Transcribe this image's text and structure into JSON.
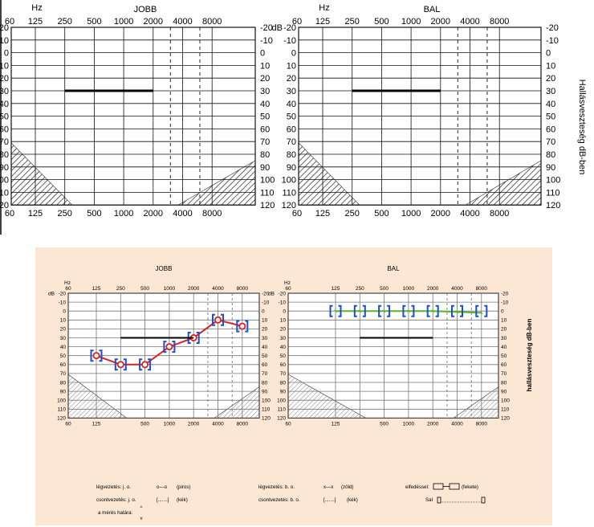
{
  "top": {
    "charts": [
      {
        "title": "JOBB"
      },
      {
        "title": "BAL"
      }
    ],
    "hz_label": "Hz",
    "db_label": "dB",
    "x_ticks": [
      "60",
      "125",
      "250",
      "500",
      "1000",
      "2000",
      "4000",
      "8000"
    ],
    "x_bottom_ticks": [
      "60",
      "125",
      "250",
      "500",
      "1000",
      "2000",
      "4000",
      "8000"
    ],
    "y_ticks": [
      "-20",
      "-10",
      "0",
      "10",
      "20",
      "30",
      "40",
      "50",
      "60",
      "70",
      "80",
      "90",
      "100",
      "110",
      "120"
    ],
    "side_label": "Hallásveszteség dB-ben"
  },
  "bottom": {
    "charts": [
      {
        "title": "JOBB"
      },
      {
        "title": "BAL"
      }
    ],
    "hz_label": "Hz",
    "db_label": "dB",
    "x_ticks": [
      "60",
      "125",
      "250",
      "500",
      "1000",
      "2000",
      "4000",
      "8000"
    ],
    "x_bottom_ticks": [
      "60",
      "125",
      "",
      "500",
      "1000",
      "2000",
      "4000",
      "8000"
    ],
    "y_ticks": [
      "-20",
      "-10",
      "0",
      "10",
      "20",
      "30",
      "40",
      "50",
      "60",
      "70",
      "80",
      "90",
      "100",
      "110",
      "120"
    ],
    "side_label": "hallásveszteség dB-ben",
    "legend": {
      "air_right": "légvezetés: j. o.",
      "air_right_sym": "o—o",
      "air_right_color": "(piros)",
      "bone_right": "csontvezetés: j. o.",
      "bone_right_sym": "[.......]",
      "bone_right_color": "(kék)",
      "limit": "a mérés határa:",
      "air_left": "légvezetés: b. o.",
      "air_left_sym": "x—x",
      "air_left_color": "(zöld)",
      "bone_left": "csontvezetés: b. o.",
      "bone_left_sym": "[.......]",
      "bone_left_color": "(kék)",
      "masking": "elfedéssel:",
      "masking_color": "(fekete)",
      "noise": "SaI"
    }
  },
  "chart_data": [
    {
      "panel": "top-left",
      "type": "line",
      "title": "JOBB",
      "x": [
        250,
        2000
      ],
      "y": [
        30,
        30
      ],
      "ylim": [
        -20,
        120
      ],
      "y_inverted": true,
      "x_scale": "log"
    },
    {
      "panel": "top-right",
      "type": "line",
      "title": "BAL",
      "x": [
        250,
        2000
      ],
      "y": [
        30,
        30
      ],
      "ylim": [
        -20,
        120
      ],
      "y_inverted": true,
      "x_scale": "log"
    },
    {
      "panel": "bottom-left",
      "type": "line",
      "title": "JOBB",
      "ylim": [
        -20,
        120
      ],
      "y_inverted": true,
      "x_scale": "log",
      "series": [
        {
          "x": [
            125,
            250,
            500,
            1000,
            2000,
            4000,
            8000
          ],
          "values": [
            50,
            60,
            60,
            40,
            30,
            10,
            17
          ],
          "color": "#e11d1d"
        },
        {
          "x": [
            125,
            250,
            500,
            1000,
            2000,
            4000,
            8000
          ],
          "values": [
            50,
            60,
            60,
            40,
            30,
            10,
            17
          ],
          "color": "#1a4fd0"
        },
        {
          "x": [
            250,
            2000
          ],
          "values": [
            30,
            30
          ],
          "color": "#000000"
        }
      ]
    },
    {
      "panel": "bottom-right",
      "type": "line",
      "title": "BAL",
      "ylim": [
        -20,
        120
      ],
      "y_inverted": true,
      "x_scale": "log",
      "series": [
        {
          "x": [
            125,
            250,
            500,
            1000,
            2000,
            4000,
            8000
          ],
          "values": [
            0,
            0,
            0,
            0,
            0,
            1,
            2
          ],
          "color": "#55b82a"
        },
        {
          "x": [
            125,
            250,
            500,
            1000,
            2000,
            4000,
            8000
          ],
          "values": [
            0,
            0,
            0,
            0,
            0,
            0,
            0
          ],
          "color": "#1a4fd0"
        },
        {
          "x": [
            250,
            2000
          ],
          "values": [
            30,
            30
          ],
          "color": "#000000"
        }
      ]
    }
  ]
}
